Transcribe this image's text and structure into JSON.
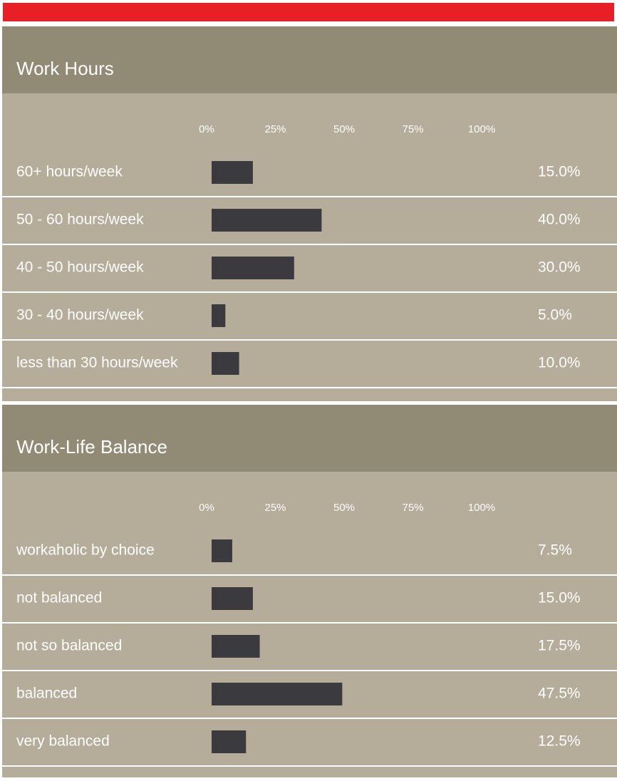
{
  "chart_data": [
    {
      "type": "bar",
      "title": "Work Hours",
      "categories": [
        "60+ hours/week",
        "50 - 60 hours/week",
        "40 - 50 hours/week",
        "30 - 40 hours/week",
        "less than 30 hours/week"
      ],
      "values": [
        15,
        40,
        30,
        5,
        10
      ],
      "value_labels": [
        "15.0%",
        "40.0%",
        "30.0%",
        "5.0%",
        "10.0%"
      ],
      "color": "#3b3a3e",
      "xlim": [
        0,
        100
      ],
      "xticks": [
        {
          "value": 0,
          "label": "0%"
        },
        {
          "value": 25,
          "label": "25%"
        },
        {
          "value": 50,
          "label": "50%"
        },
        {
          "value": 75,
          "label": "75%"
        },
        {
          "value": 100,
          "label": "100%"
        }
      ]
    },
    {
      "type": "bar",
      "title": "Work-Life Balance",
      "categories": [
        "workaholic by choice",
        "not balanced",
        "not so balanced",
        "balanced",
        "very balanced"
      ],
      "values": [
        7.5,
        15,
        17.5,
        47.5,
        12.5
      ],
      "value_labels": [
        "7.5%",
        "15.0%",
        "17.5%",
        "47.5%",
        "12.5%"
      ],
      "color": "#3b3a3e",
      "xlim": [
        0,
        100
      ],
      "xticks": [
        {
          "value": 0,
          "label": "0%"
        },
        {
          "value": 25,
          "label": "25%"
        },
        {
          "value": 50,
          "label": "50%"
        },
        {
          "value": 75,
          "label": "75%"
        },
        {
          "value": 100,
          "label": "100%"
        }
      ]
    }
  ]
}
